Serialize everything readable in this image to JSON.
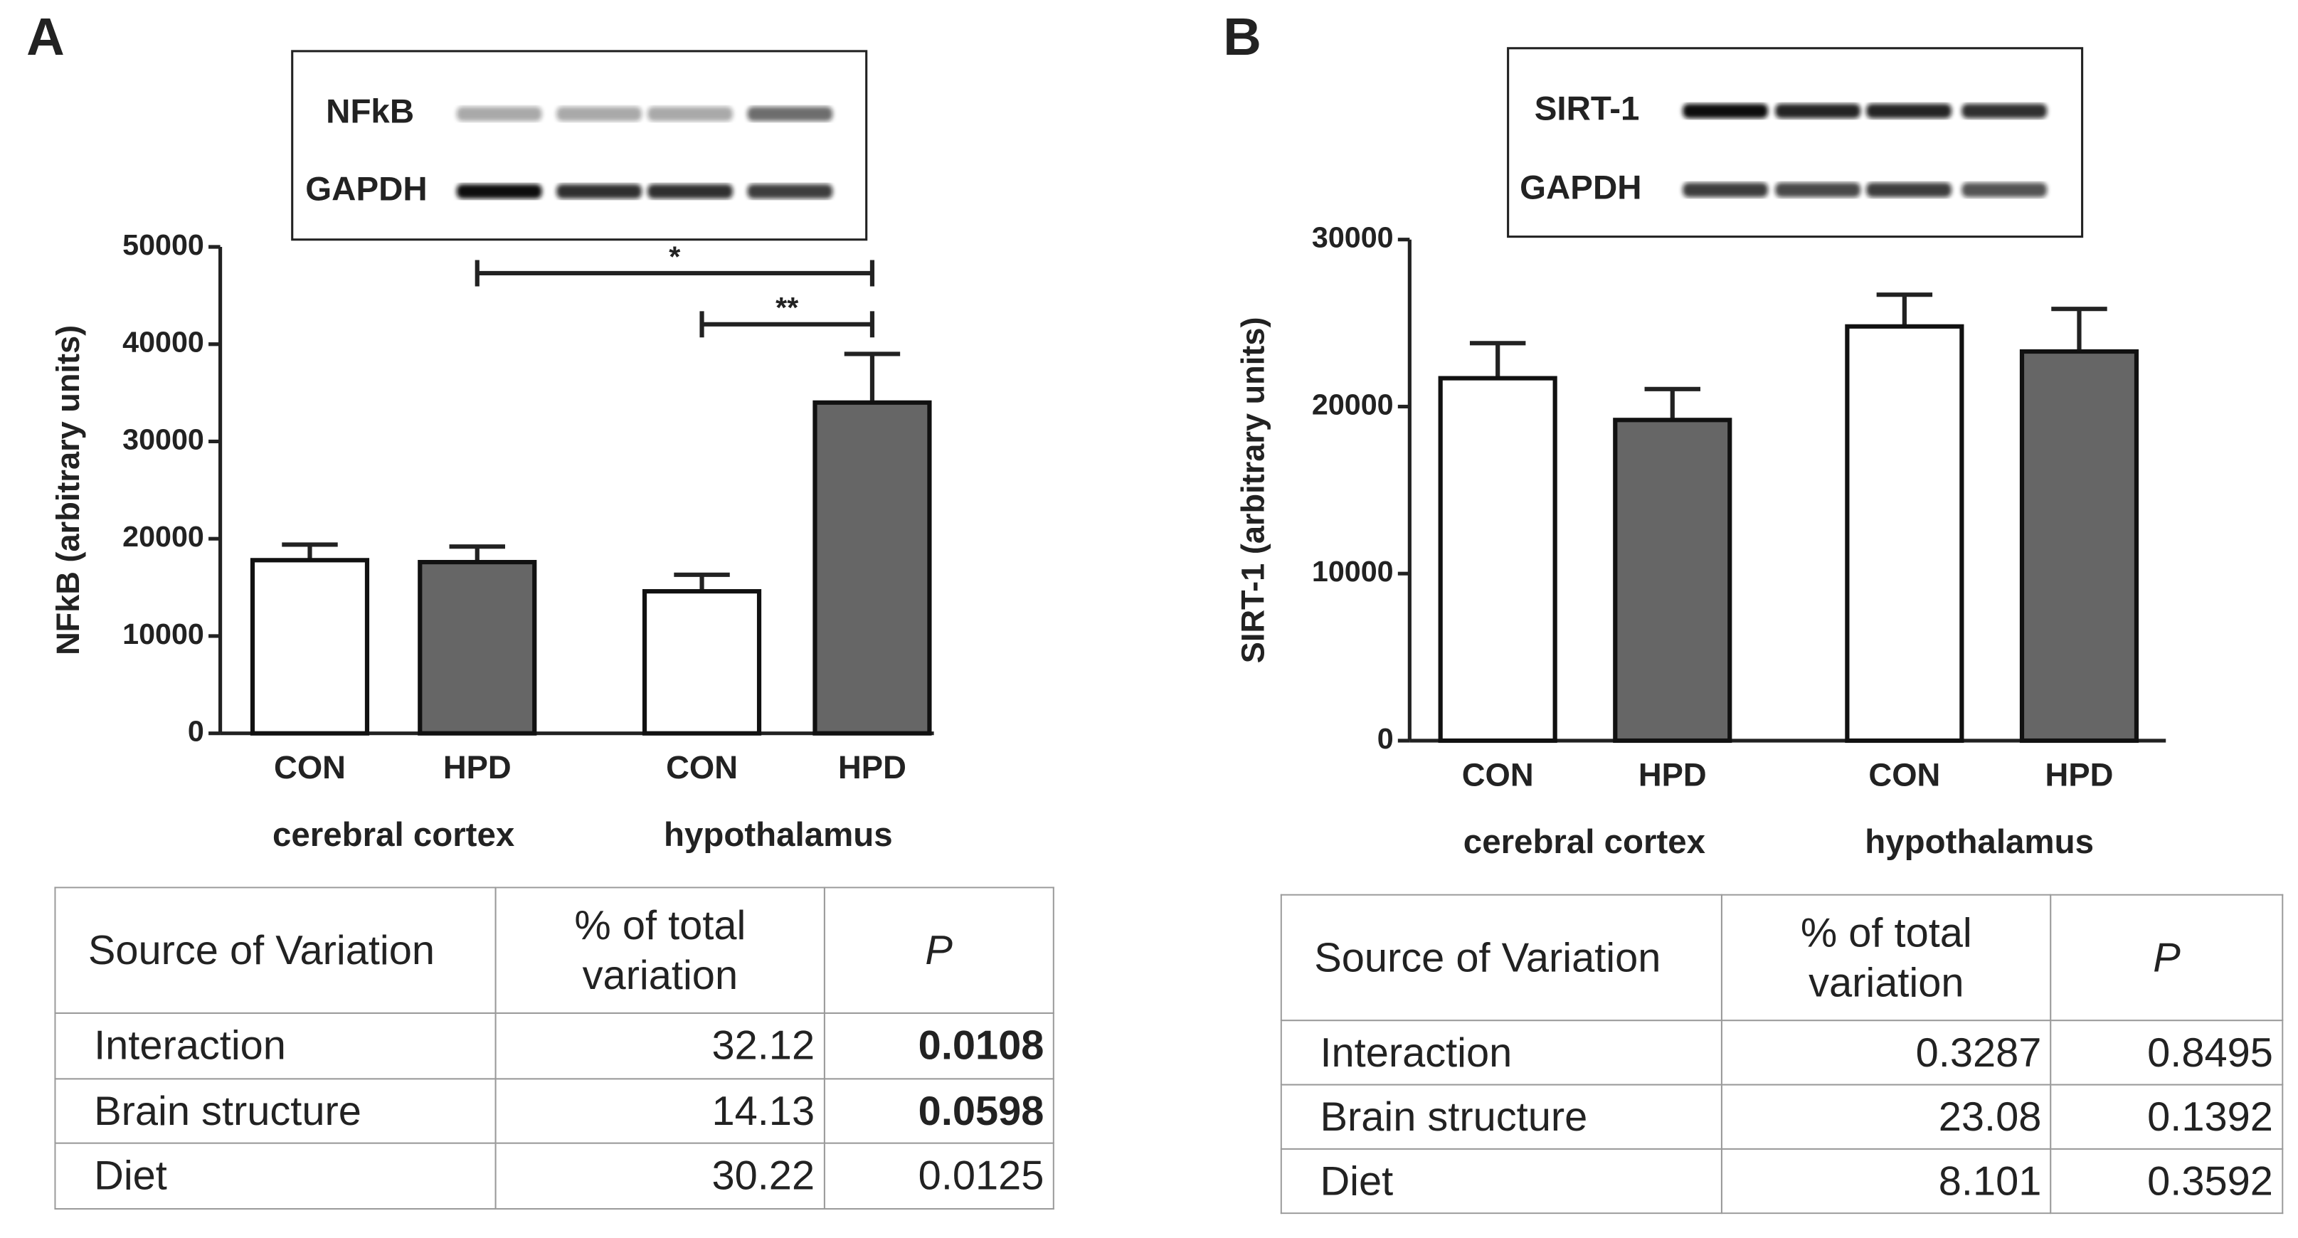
{
  "chart_data": [
    {
      "type": "bar",
      "panel": "A",
      "blot_labels": [
        "NFkB",
        "GAPDH"
      ],
      "ylabel": "NFkB (arbitrary units)",
      "categories": [
        "CON",
        "HPD",
        "CON",
        "HPD"
      ],
      "groups": [
        "cerebral cortex",
        "hypothalamus"
      ],
      "values": [
        17800,
        17600,
        14600,
        34000
      ],
      "errors": [
        1600,
        1600,
        1700,
        5000
      ],
      "colors": [
        "#ffffff",
        "#666666",
        "#ffffff",
        "#666666"
      ],
      "ylim": [
        0,
        50000
      ],
      "yticks": [
        0,
        10000,
        20000,
        30000,
        40000,
        50000
      ],
      "annotations": [
        {
          "label": "*",
          "from": 1,
          "to": 3
        },
        {
          "label": "**",
          "from": 2,
          "to": 3
        }
      ]
    },
    {
      "type": "bar",
      "panel": "B",
      "blot_labels": [
        "SIRT-1",
        "GAPDH"
      ],
      "ylabel": "SIRT-1 (arbitrary units)",
      "categories": [
        "CON",
        "HPD",
        "CON",
        "HPD"
      ],
      "groups": [
        "cerebral cortex",
        "hypothalamus"
      ],
      "values": [
        21700,
        19200,
        24800,
        23300
      ],
      "errors": [
        2100,
        1850,
        1900,
        2550
      ],
      "colors": [
        "#ffffff",
        "#666666",
        "#ffffff",
        "#666666"
      ],
      "ylim": [
        0,
        30000
      ],
      "yticks": [
        0,
        10000,
        20000,
        30000
      ],
      "annotations": []
    }
  ],
  "tables": [
    {
      "header": [
        "Source of Variation",
        "% of total variation",
        "P"
      ],
      "rows": [
        [
          "Interaction",
          "32.12",
          "0.0108"
        ],
        [
          "Brain structure",
          "14.13",
          "0.0598"
        ],
        [
          "Diet",
          "30.22",
          "0.0125"
        ]
      ],
      "p_bold": [
        true,
        true,
        false
      ]
    },
    {
      "header": [
        "Source of Variation",
        "% of total variation",
        "P"
      ],
      "rows": [
        [
          "Interaction",
          "0.3287",
          "0.8495"
        ],
        [
          "Brain structure",
          "23.08",
          "0.1392"
        ],
        [
          "Diet",
          "8.101",
          "0.3592"
        ]
      ],
      "p_bold": [
        false,
        false,
        false
      ]
    }
  ]
}
